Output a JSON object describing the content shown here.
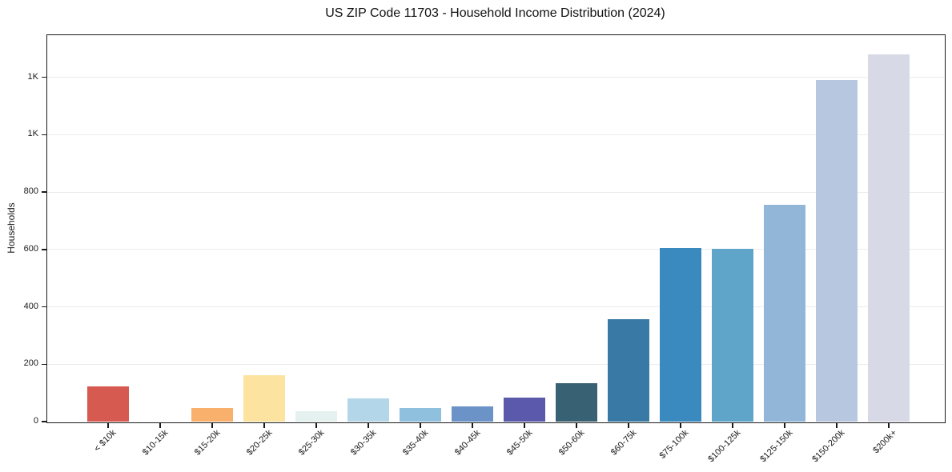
{
  "page": {
    "background": "#ffffff",
    "text_color": "#1a1a1a",
    "axis_color": "#1a1a1a",
    "gridline_color": "#ececec"
  },
  "chart_data": {
    "type": "bar",
    "title": "US ZIP Code 11703 - Household Income Distribution (2024)",
    "xlabel": "",
    "ylabel": "Households",
    "categories": [
      "< $10k",
      "$10-15k",
      "$15-20k",
      "$20-25k",
      "$25-30k",
      "$30-35k",
      "$35-40k",
      "$40-45k",
      "$45-50k",
      "$50-60k",
      "$60-75k",
      "$75-100k",
      "$100-125k",
      "$125-150k",
      "$150-200k",
      "$200k+"
    ],
    "values": [
      122,
      0,
      48,
      162,
      36,
      81,
      48,
      54,
      85,
      133,
      358,
      605,
      603,
      755,
      1190,
      1280
    ],
    "bar_colors": [
      "#d75a51",
      null,
      "#fab06d",
      "#fce4a0",
      "#e4f1ee",
      "#b3d7e8",
      "#8fc0dd",
      "#6b93c8",
      "#5a59ab",
      "#396174",
      "#387aa5",
      "#3a89bf",
      "#5fa5c9",
      "#92b6d8",
      "#b8c7e0",
      "#d8d9e7"
    ],
    "ylim": [
      0,
      1350
    ],
    "yticks": [
      {
        "value": 0,
        "label": "0"
      },
      {
        "value": 200,
        "label": "200"
      },
      {
        "value": 400,
        "label": "400"
      },
      {
        "value": 600,
        "label": "600"
      },
      {
        "value": 800,
        "label": "800"
      },
      {
        "value": 1000,
        "label": "1K"
      },
      {
        "value": 1200,
        "label": "1K"
      }
    ],
    "grid": "horizontal",
    "legend": "none",
    "x_tick_rotation_deg": 45
  }
}
